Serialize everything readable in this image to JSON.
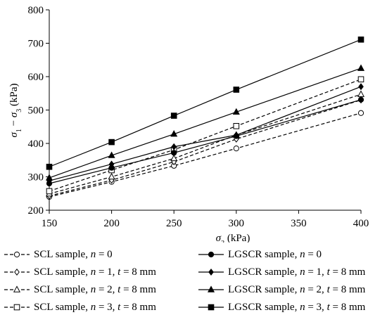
{
  "chart_data": {
    "type": "line",
    "title": "",
    "xlabel": "σ₃ (kPa)",
    "ylabel": "σ₁ − σ₃ (kPa)",
    "xlim": [
      150,
      400
    ],
    "ylim": [
      200,
      800
    ],
    "xticks": [
      150,
      200,
      250,
      300,
      350,
      400
    ],
    "yticks": [
      200,
      300,
      400,
      500,
      600,
      700,
      800
    ],
    "xtick_labels": [
      "150",
      "200",
      "250",
      "300",
      "350",
      "400"
    ],
    "ytick_labels": [
      "200",
      "300",
      "400",
      "500",
      "600",
      "700",
      "800"
    ],
    "grid": false,
    "legend_position": "bottom",
    "x": [
      150,
      200,
      250,
      300,
      400
    ],
    "series": [
      {
        "name": "SCL sample, n = 0",
        "values": [
          240,
          285,
          333,
          385,
          491
        ],
        "linestyle": "dashed",
        "marker": "circle",
        "filled": false
      },
      {
        "name": "SCL sample, n = 1, t = 8 mm",
        "values": [
          243,
          290,
          345,
          413,
          530
        ],
        "linestyle": "dashed",
        "marker": "diamond",
        "filled": false
      },
      {
        "name": "SCL sample, n = 2, t = 8 mm",
        "values": [
          249,
          300,
          355,
          425,
          547
        ],
        "linestyle": "dashed",
        "marker": "triangle",
        "filled": false
      },
      {
        "name": "SCL sample, n = 3, t = 8 mm",
        "values": [
          257,
          320,
          381,
          452,
          592
        ],
        "linestyle": "dashed",
        "marker": "square",
        "filled": false
      },
      {
        "name": "LGSCR sample, n = 0",
        "values": [
          280,
          327,
          372,
          422,
          531
        ],
        "linestyle": "solid",
        "marker": "circle",
        "filled": true
      },
      {
        "name": "LGSCR sample, n = 1, t = 8 mm",
        "values": [
          288,
          338,
          390,
          425,
          570
        ],
        "linestyle": "solid",
        "marker": "diamond",
        "filled": true
      },
      {
        "name": "LGSCR sample, n = 2, t = 8 mm",
        "values": [
          297,
          364,
          428,
          494,
          625
        ],
        "linestyle": "solid",
        "marker": "triangle",
        "filled": true
      },
      {
        "name": "LGSCR sample, n = 3, t = 8 mm",
        "values": [
          330,
          404,
          483,
          561,
          711
        ],
        "linestyle": "solid",
        "marker": "square",
        "filled": true
      }
    ]
  },
  "legend": {
    "items": [
      {
        "text": "SCL sample, n = 0"
      },
      {
        "text": "LGSCR sample, n = 0"
      },
      {
        "text": "SCL sample, n = 1, t = 8 mm"
      },
      {
        "text": "LGSCR sample, n = 1, t = 8 mm"
      },
      {
        "text": "SCL sample, n = 2, t = 8 mm"
      },
      {
        "text": "LGSCR sample, n = 2, t = 8 mm"
      },
      {
        "text": "SCL sample, n = 3, t = 8 mm"
      },
      {
        "text": "LGSCR sample, n = 3, t = 8 mm"
      }
    ]
  }
}
